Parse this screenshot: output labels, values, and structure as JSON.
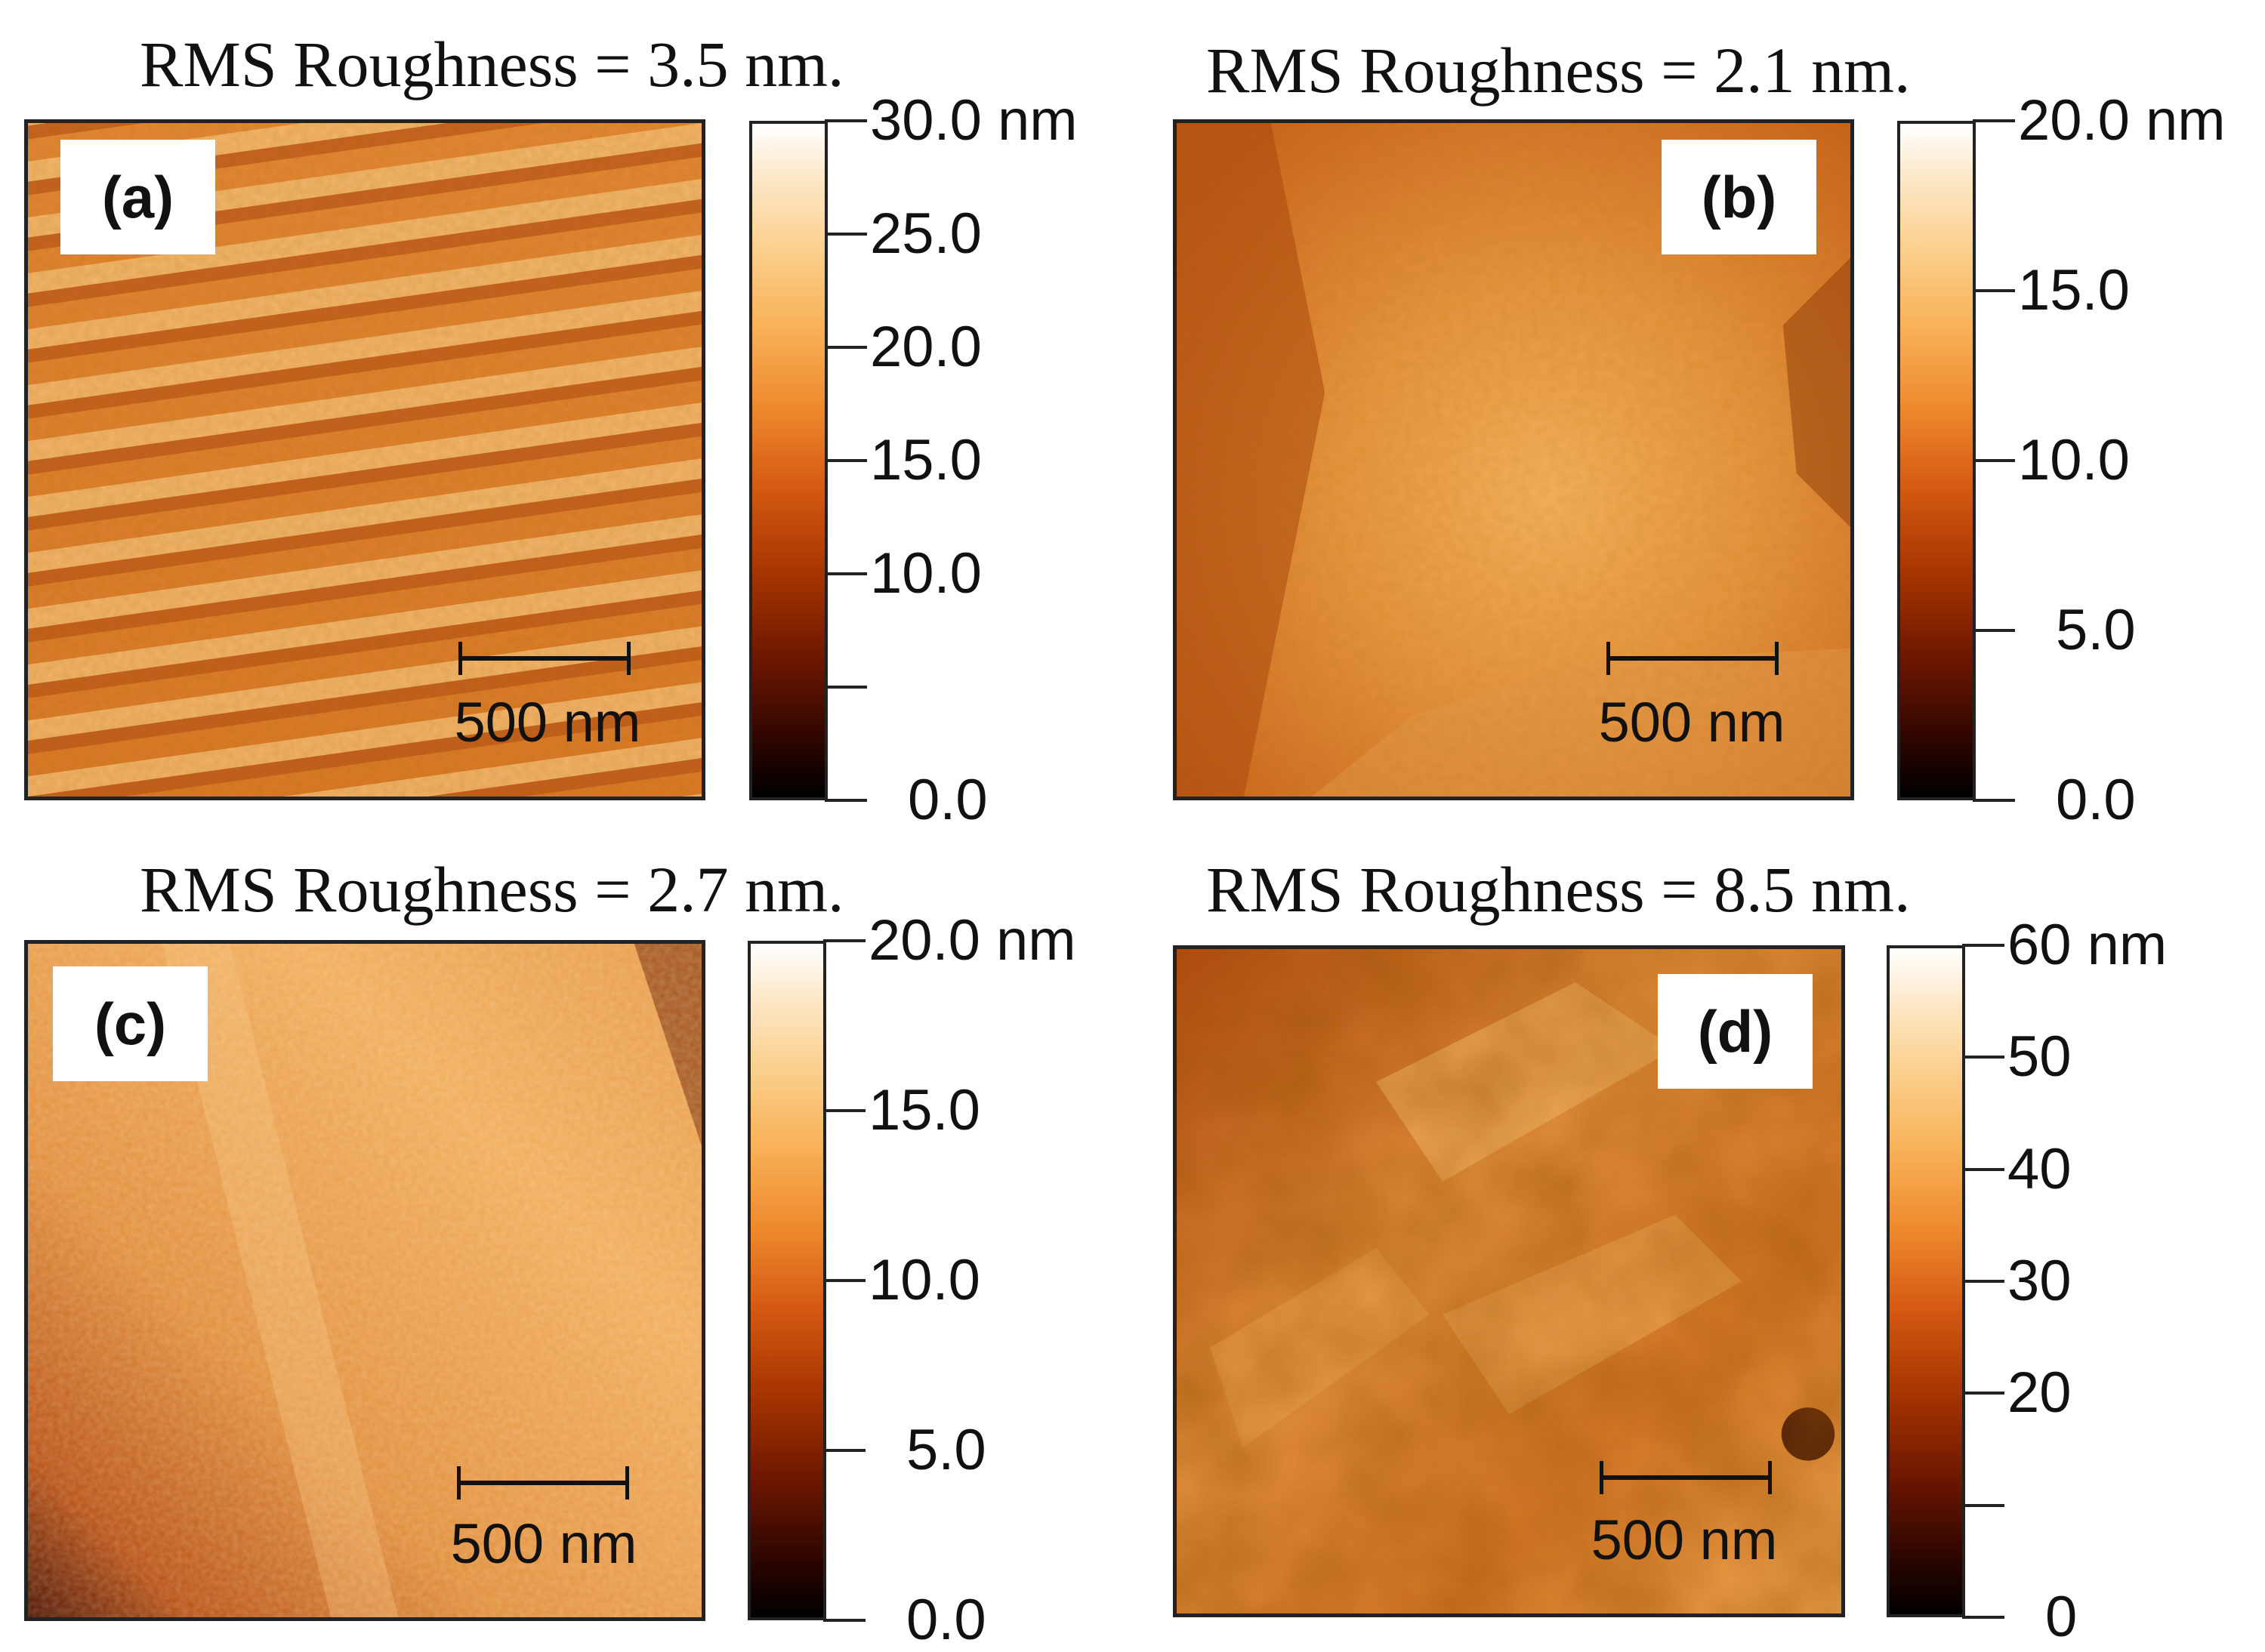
{
  "panels": [
    {
      "id": "a",
      "title": "RMS Roughness = 3.5 nm.",
      "label": "(a)",
      "scale_bar": "500 nm",
      "colorbar_ticks": [
        "30.0 nm",
        "25.0",
        "20.0",
        "15.0",
        "10.0",
        "0.0"
      ],
      "colorbar_range_nm": [
        0,
        30
      ]
    },
    {
      "id": "b",
      "title": "RMS Roughness = 2.1 nm.",
      "label": "(b)",
      "scale_bar": "500 nm",
      "colorbar_ticks": [
        "20.0 nm",
        "15.0",
        "10.0",
        "5.0",
        "0.0"
      ],
      "colorbar_range_nm": [
        0,
        20
      ]
    },
    {
      "id": "c",
      "title": "RMS Roughness = 2.7 nm.",
      "label": "(c)",
      "scale_bar": "500 nm",
      "colorbar_ticks": [
        "20.0 nm",
        "15.0",
        "10.0",
        "5.0",
        "0.0"
      ],
      "colorbar_range_nm": [
        0,
        20
      ]
    },
    {
      "id": "d",
      "title": "RMS Roughness = 8.5 nm.",
      "label": "(d)",
      "scale_bar": "500 nm",
      "colorbar_ticks": [
        "60 nm",
        "50",
        "40",
        "30",
        "20",
        "0"
      ],
      "colorbar_range_nm": [
        0,
        60
      ]
    }
  ],
  "colors": {
    "afm_dark": "#3a0a00",
    "afm_mid": "#c8641c",
    "afm_light": "#f6b865"
  }
}
